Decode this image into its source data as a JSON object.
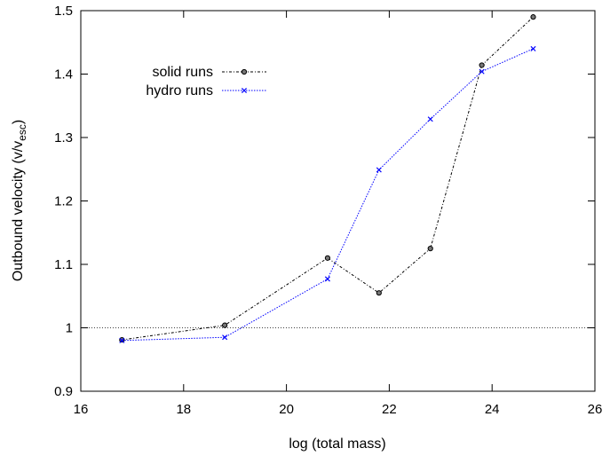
{
  "chart_data": {
    "type": "line",
    "xlabel": "log (total mass)",
    "ylabel_main": "Outbound velocity (v/v",
    "ylabel_sub": "esc",
    "ylabel_close": ")",
    "xlim": [
      16,
      26
    ],
    "ylim": [
      0.9,
      1.5
    ],
    "xticks": [
      16,
      18,
      20,
      22,
      24,
      26
    ],
    "yticks": [
      0.9,
      1,
      1.1,
      1.2,
      1.3,
      1.4,
      1.5
    ],
    "xtick_labels": [
      "16",
      "18",
      "20",
      "22",
      "24",
      "26"
    ],
    "ytick_labels": [
      "0.9",
      "1",
      "1.1",
      "1.2",
      "1.3",
      "1.4",
      "1.5"
    ],
    "reference_line": {
      "y": 1.0,
      "style": "dotted",
      "color": "#000000"
    },
    "legend_position": "top-left",
    "series": [
      {
        "name": "solid runs",
        "color": "#000000",
        "marker": "circle",
        "line_style": "dash-dot",
        "x": [
          16.8,
          18.8,
          20.8,
          21.8,
          22.8,
          23.8,
          24.8
        ],
        "y": [
          0.981,
          1.004,
          1.11,
          1.055,
          1.125,
          1.414,
          1.49
        ]
      },
      {
        "name": "hydro runs",
        "color": "#0000ff",
        "marker": "x",
        "line_style": "dotted",
        "x": [
          16.8,
          18.8,
          20.8,
          21.8,
          22.8,
          23.8,
          24.8
        ],
        "y": [
          0.98,
          0.985,
          1.077,
          1.249,
          1.329,
          1.404,
          1.44
        ]
      }
    ]
  }
}
